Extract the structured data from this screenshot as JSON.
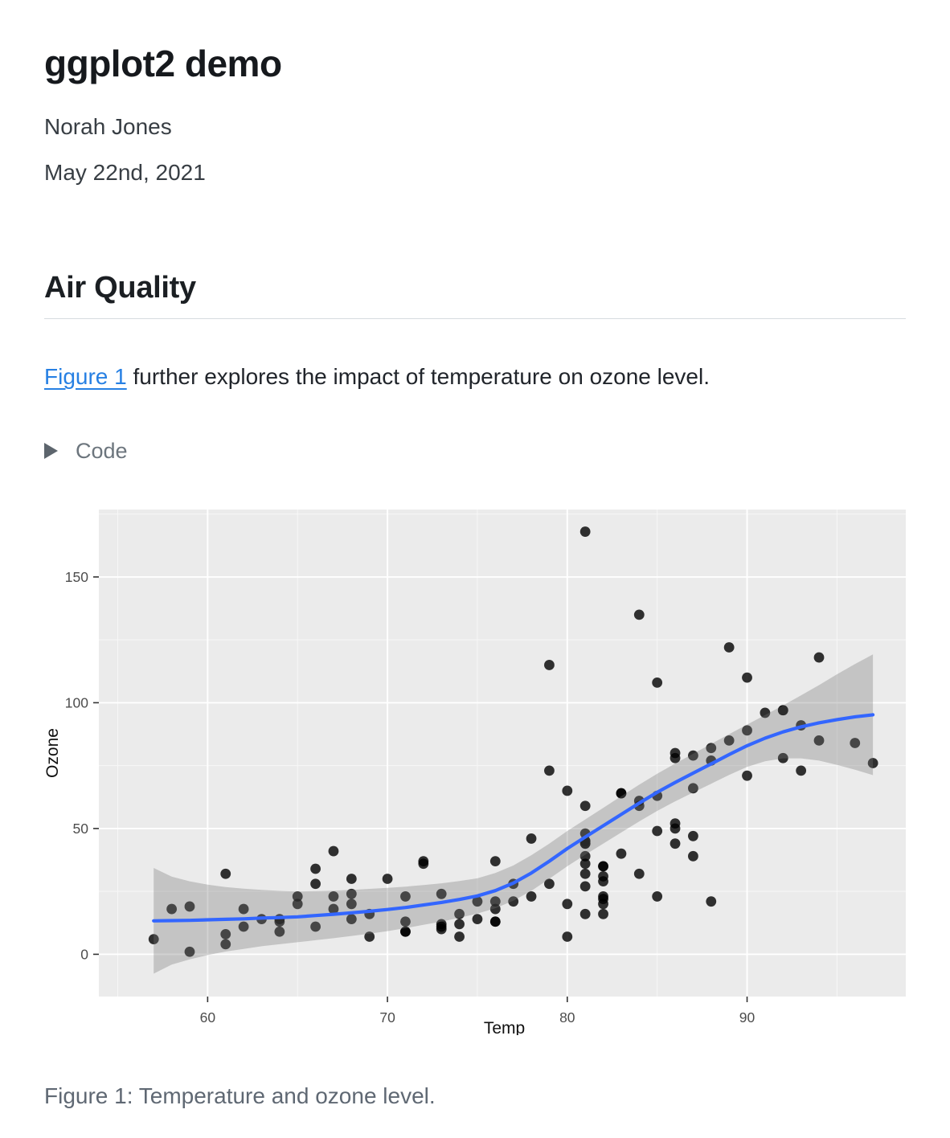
{
  "page": {
    "title": "ggplot2 demo",
    "author": "Norah Jones",
    "date": "May 22nd, 2021"
  },
  "section": {
    "heading": "Air Quality"
  },
  "paragraph": {
    "link_text": "Figure 1",
    "text_after_link": " further explores the impact of temperature on ozone level."
  },
  "code_block": {
    "label": "Code",
    "state": "collapsed",
    "icon": "right-pointing-triangle"
  },
  "figure": {
    "caption": "Figure 1: Temperature and ozone level."
  },
  "colors": {
    "link": "#2780e3",
    "panel_background": "#ebebeb",
    "gridline": "#ffffff",
    "point": "#000000",
    "smooth_line": "#3366FF",
    "ribbon": "#777777",
    "tick_mark": "#333333",
    "axis_text": "#4d4d4d",
    "axis_title": "#111111"
  },
  "chart_data": {
    "type": "scatter",
    "title": "",
    "xlabel": "Temp",
    "ylabel": "Ozone",
    "xlim": [
      53.95,
      99.05
    ],
    "ylim": [
      -16.8,
      176.8
    ],
    "x_ticks": [
      60,
      70,
      80,
      90
    ],
    "y_ticks": [
      0,
      50,
      100,
      150
    ],
    "x_minor_ticks": [
      55,
      65,
      75,
      85,
      95
    ],
    "y_minor_ticks": [
      25,
      75,
      125,
      175
    ],
    "grid": true,
    "legend": false,
    "points_xy": [
      [
        67,
        41
      ],
      [
        72,
        36
      ],
      [
        74,
        12
      ],
      [
        62,
        18
      ],
      [
        66,
        28
      ],
      [
        65,
        23
      ],
      [
        59,
        19
      ],
      [
        61,
        8
      ],
      [
        74,
        7
      ],
      [
        69,
        16
      ],
      [
        66,
        11
      ],
      [
        68,
        14
      ],
      [
        58,
        18
      ],
      [
        64,
        14
      ],
      [
        66,
        34
      ],
      [
        57,
        6
      ],
      [
        68,
        30
      ],
      [
        62,
        11
      ],
      [
        59,
        1
      ],
      [
        73,
        11
      ],
      [
        61,
        4
      ],
      [
        61,
        32
      ],
      [
        67,
        23
      ],
      [
        81,
        45
      ],
      [
        79,
        115
      ],
      [
        76,
        37
      ],
      [
        82,
        29
      ],
      [
        90,
        71
      ],
      [
        87,
        39
      ],
      [
        82,
        23
      ],
      [
        77,
        21
      ],
      [
        72,
        37
      ],
      [
        65,
        20
      ],
      [
        73,
        12
      ],
      [
        76,
        13
      ],
      [
        84,
        135
      ],
      [
        85,
        49
      ],
      [
        81,
        32
      ],
      [
        83,
        64
      ],
      [
        83,
        40
      ],
      [
        88,
        77
      ],
      [
        92,
        97
      ],
      [
        92,
        97
      ],
      [
        89,
        85
      ],
      [
        73,
        10
      ],
      [
        81,
        27
      ],
      [
        80,
        7
      ],
      [
        81,
        48
      ],
      [
        82,
        35
      ],
      [
        84,
        61
      ],
      [
        87,
        79
      ],
      [
        85,
        63
      ],
      [
        74,
        16
      ],
      [
        86,
        80
      ],
      [
        85,
        108
      ],
      [
        82,
        20
      ],
      [
        86,
        52
      ],
      [
        88,
        82
      ],
      [
        86,
        50
      ],
      [
        83,
        64
      ],
      [
        81,
        59
      ],
      [
        81,
        39
      ],
      [
        71,
        9
      ],
      [
        81,
        16
      ],
      [
        86,
        78
      ],
      [
        82,
        35
      ],
      [
        87,
        66
      ],
      [
        89,
        122
      ],
      [
        90,
        89
      ],
      [
        90,
        110
      ],
      [
        81,
        44
      ],
      [
        79,
        28
      ],
      [
        80,
        65
      ],
      [
        82,
        22
      ],
      [
        84,
        59
      ],
      [
        85,
        23
      ],
      [
        82,
        31
      ],
      [
        86,
        44
      ],
      [
        88,
        21
      ],
      [
        64,
        9
      ],
      [
        81,
        45
      ],
      [
        81,
        168
      ],
      [
        79,
        73
      ],
      [
        97,
        76
      ],
      [
        94,
        118
      ],
      [
        96,
        84
      ],
      [
        94,
        85
      ],
      [
        91,
        96
      ],
      [
        92,
        78
      ],
      [
        93,
        73
      ],
      [
        93,
        91
      ],
      [
        87,
        47
      ],
      [
        84,
        32
      ],
      [
        80,
        20
      ],
      [
        78,
        23
      ],
      [
        75,
        21
      ],
      [
        73,
        24
      ],
      [
        81,
        44
      ],
      [
        76,
        21
      ],
      [
        77,
        28
      ],
      [
        71,
        9
      ],
      [
        71,
        13
      ],
      [
        78,
        46
      ],
      [
        67,
        18
      ],
      [
        76,
        13
      ],
      [
        68,
        24
      ],
      [
        82,
        16
      ],
      [
        64,
        13
      ],
      [
        71,
        23
      ],
      [
        81,
        36
      ],
      [
        69,
        7
      ],
      [
        63,
        14
      ],
      [
        70,
        30
      ],
      [
        75,
        14
      ],
      [
        76,
        18
      ],
      [
        68,
        20
      ]
    ],
    "smooth": {
      "method": "loess",
      "series_t_fit_lwr_upr": [
        [
          57,
          13.3,
          -7.7,
          34.3
        ],
        [
          58,
          13.4,
          -4.1,
          30.9
        ],
        [
          59,
          13.5,
          -2.0,
          29.0
        ],
        [
          60,
          13.7,
          -0.3,
          27.7
        ],
        [
          61,
          13.9,
          1.1,
          26.7
        ],
        [
          62,
          14.1,
          2.1,
          26.1
        ],
        [
          63,
          14.4,
          3.2,
          25.6
        ],
        [
          64,
          14.6,
          4.0,
          25.2
        ],
        [
          65,
          14.9,
          4.8,
          25.0
        ],
        [
          66,
          15.4,
          5.6,
          25.1
        ],
        [
          67,
          15.9,
          6.4,
          25.3
        ],
        [
          68,
          16.5,
          7.3,
          25.6
        ],
        [
          69,
          17.1,
          8.2,
          26.0
        ],
        [
          70,
          17.8,
          9.2,
          26.4
        ],
        [
          71,
          18.6,
          10.4,
          26.9
        ],
        [
          72,
          19.6,
          11.7,
          27.5
        ],
        [
          73,
          20.6,
          13.0,
          28.2
        ],
        [
          74,
          21.8,
          14.5,
          29.1
        ],
        [
          75,
          23.2,
          16.2,
          30.2
        ],
        [
          76,
          25.3,
          18.3,
          32.3
        ],
        [
          77,
          28.3,
          21.3,
          35.3
        ],
        [
          78,
          32.3,
          25.2,
          39.4
        ],
        [
          79,
          37.0,
          30.0,
          44.0
        ],
        [
          80,
          42.0,
          35.0,
          49.0
        ],
        [
          81,
          46.6,
          39.6,
          53.6
        ],
        [
          82,
          51.1,
          44.0,
          58.2
        ],
        [
          83,
          55.6,
          48.4,
          62.8
        ],
        [
          84,
          60.1,
          52.8,
          67.4
        ],
        [
          85,
          64.4,
          57.0,
          71.8
        ],
        [
          86,
          68.3,
          60.8,
          75.8
        ],
        [
          87,
          72.0,
          64.3,
          79.7
        ],
        [
          88,
          75.7,
          67.8,
          83.6
        ],
        [
          89,
          79.4,
          71.3,
          87.5
        ],
        [
          90,
          82.9,
          74.5,
          91.3
        ],
        [
          91,
          85.9,
          76.7,
          95.1
        ],
        [
          92,
          88.4,
          77.9,
          98.9
        ],
        [
          93,
          90.4,
          77.9,
          102.9
        ],
        [
          94,
          92.0,
          77.0,
          107.0
        ],
        [
          95,
          93.3,
          75.3,
          111.3
        ],
        [
          96,
          94.4,
          73.4,
          115.4
        ],
        [
          97,
          95.2,
          71.2,
          119.2
        ]
      ]
    }
  }
}
